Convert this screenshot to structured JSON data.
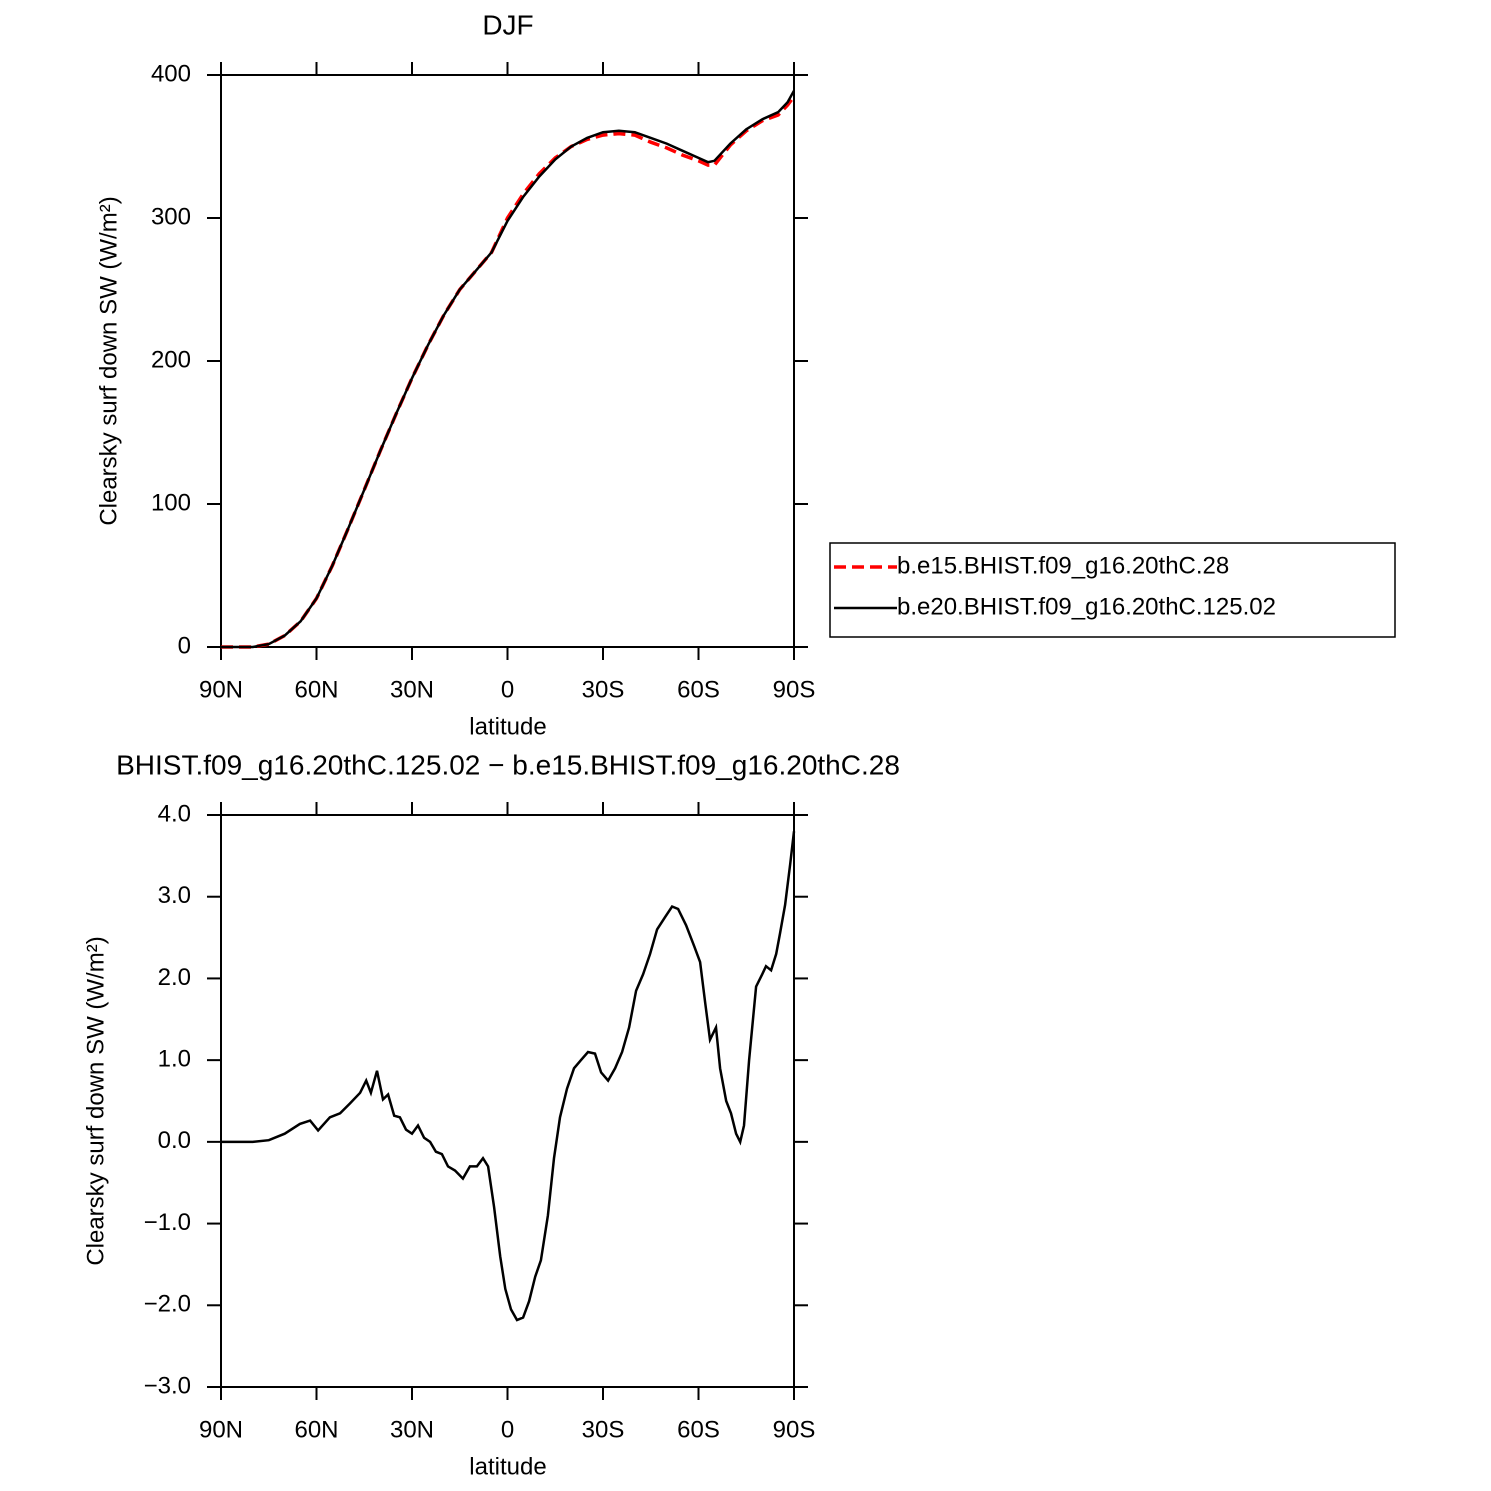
{
  "chart_data": [
    {
      "type": "line",
      "title": "DJF",
      "xlabel": "latitude",
      "ylabel": "Clearsky surf down SW (W/m²)",
      "xlim": [
        90,
        -90
      ],
      "xticks": [
        {
          "value": 90,
          "label": "90N"
        },
        {
          "value": 60,
          "label": "60N"
        },
        {
          "value": 30,
          "label": "30N"
        },
        0,
        {
          "value": -30,
          "label": "30S"
        },
        {
          "value": -60,
          "label": "60S"
        },
        {
          "value": -90,
          "label": "90S"
        }
      ],
      "ylim": [
        0,
        400
      ],
      "yticks": [
        0,
        100,
        200,
        300,
        400
      ],
      "legend": "right",
      "x": [
        90,
        80,
        75,
        70,
        65,
        60,
        55,
        50,
        45,
        40,
        35,
        30,
        25,
        20,
        15,
        10,
        5,
        0,
        -5,
        -10,
        -15,
        -20,
        -25,
        -30,
        -35,
        -40,
        -45,
        -50,
        -55,
        -60,
        -63,
        -65,
        -70,
        -75,
        -80,
        -85,
        -88,
        -90
      ],
      "series": [
        {
          "name": "b.e15.BHIST.f09_g16.20thC.28",
          "color": "#ff0000",
          "linestyle": "dashed",
          "values": [
            0,
            0,
            2,
            8,
            18,
            34,
            57,
            83,
            110,
            137,
            163,
            188,
            211,
            232,
            250,
            263,
            276,
            300,
            317,
            331,
            342,
            350,
            355,
            358,
            359,
            358,
            353,
            349,
            344,
            340,
            337,
            337,
            351,
            361,
            368,
            372,
            379,
            385
          ]
        },
        {
          "name": "b.e20.BHIST.f09_g16.20thC.125.02",
          "color": "#000000",
          "linestyle": "solid",
          "values": [
            0,
            0,
            2,
            8,
            18,
            34,
            57,
            83,
            110,
            137,
            163,
            188,
            211,
            232,
            250,
            263,
            276,
            298,
            315,
            329,
            341,
            350,
            356,
            360,
            361,
            360,
            356,
            352,
            347,
            342,
            339,
            340,
            352,
            362,
            369,
            374,
            381,
            389
          ]
        }
      ]
    },
    {
      "type": "line",
      "title": "BHIST.f09_g16.20thC.125.02 − b.e15.BHIST.f09_g16.20thC.28",
      "xlabel": "latitude",
      "ylabel": "Clearsky surf down SW (W/m²)",
      "xlim": [
        90,
        -90
      ],
      "xticks": [
        {
          "value": 90,
          "label": "90N"
        },
        {
          "value": 60,
          "label": "60N"
        },
        {
          "value": 30,
          "label": "30N"
        },
        0,
        {
          "value": -30,
          "label": "30S"
        },
        {
          "value": -60,
          "label": "60S"
        },
        {
          "value": -90,
          "label": "90S"
        }
      ],
      "ylim": [
        -3,
        4
      ],
      "yticks": [
        {
          "value": -3,
          "label": "−3.0"
        },
        {
          "value": -2,
          "label": "−2.0"
        },
        {
          "value": -1,
          "label": "−1.0"
        },
        {
          "value": 0,
          "label": "0.0"
        },
        {
          "value": 1,
          "label": "1.0"
        },
        {
          "value": 2,
          "label": "2.0"
        },
        {
          "value": 3,
          "label": "3.0"
        },
        {
          "value": 4,
          "label": "4.0"
        }
      ],
      "x": [
        90,
        80,
        75,
        70,
        65.2,
        62,
        59.5,
        55.8,
        52.6,
        49.5,
        46.3,
        44.4,
        42.9,
        41,
        39.1,
        37.5,
        35.6,
        33.8,
        31.9,
        30,
        28.1,
        26.2,
        24.3,
        22.5,
        20.6,
        18.7,
        16.5,
        14,
        11.8,
        9.6,
        7.7,
        6.1,
        4.2,
        2.3,
        0.7,
        -1.1,
        -3,
        -4.9,
        -6.8,
        -8.7,
        -10.5,
        -12.7,
        -14.6,
        -16.5,
        -18.7,
        -20.9,
        -23.1,
        -25.3,
        -27.5,
        -29.4,
        -31.6,
        -33.8,
        -36,
        -38.2,
        -40.4,
        -42.6,
        -44.8,
        -47,
        -49.5,
        -51.7,
        -53.6,
        -56.1,
        -58.6,
        -60.5,
        -62.1,
        -63.6,
        -65.5,
        -66.8,
        -68.7,
        -70.2,
        -71.8,
        -73.1,
        -74.3,
        -75.9,
        -78.1,
        -80,
        -81.2,
        -82.8,
        -84.4,
        -85.6,
        -87.2,
        -88.8,
        -90
      ],
      "series": [
        {
          "color": "#000000",
          "linestyle": "solid",
          "values": [
            0,
            0,
            0.02,
            0.1,
            0.22,
            0.26,
            0.14,
            0.3,
            0.35,
            0.47,
            0.6,
            0.75,
            0.6,
            0.87,
            0.52,
            0.58,
            0.32,
            0.3,
            0.15,
            0.1,
            0.2,
            0.05,
            0,
            -0.12,
            -0.15,
            -0.3,
            -0.35,
            -0.45,
            -0.3,
            -0.3,
            -0.2,
            -0.3,
            -0.8,
            -1.4,
            -1.8,
            -2.05,
            -2.18,
            -2.15,
            -1.95,
            -1.65,
            -1.45,
            -0.9,
            -0.2,
            0.3,
            0.65,
            0.9,
            1.0,
            1.1,
            1.08,
            0.85,
            0.75,
            0.9,
            1.1,
            1.4,
            1.85,
            2.05,
            2.3,
            2.6,
            2.75,
            2.88,
            2.85,
            2.65,
            2.4,
            2.2,
            1.7,
            1.25,
            1.4,
            0.9,
            0.5,
            0.35,
            0.1,
            0,
            0.2,
            1.0,
            1.9,
            2.05,
            2.15,
            2.1,
            2.3,
            2.55,
            2.9,
            3.4,
            3.8
          ]
        }
      ]
    }
  ]
}
